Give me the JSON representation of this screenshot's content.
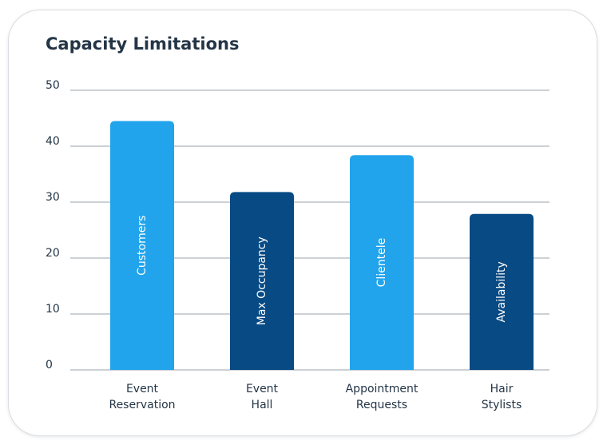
{
  "chart_data": {
    "type": "bar",
    "title": "Capacity Limitations",
    "categories": [
      [
        "Event",
        "Reservation"
      ],
      [
        "Event",
        "Hall"
      ],
      [
        "Appointment",
        "Requests"
      ],
      [
        "Hair",
        "Stylists"
      ]
    ],
    "values": [
      44.5,
      31.8,
      38.4,
      27.9
    ],
    "bar_labels": [
      "Customers",
      "Max Occupancy",
      "Clientele",
      "Availability"
    ],
    "bar_colors": [
      "#22a4ec",
      "#074a84",
      "#22a4ec",
      "#074a84"
    ],
    "ylim": [
      0,
      50
    ],
    "yticks": [
      0,
      10,
      20,
      30,
      40,
      50
    ],
    "grid": true,
    "gridline_color": "#9aa3ab",
    "text_color": "#243546"
  }
}
